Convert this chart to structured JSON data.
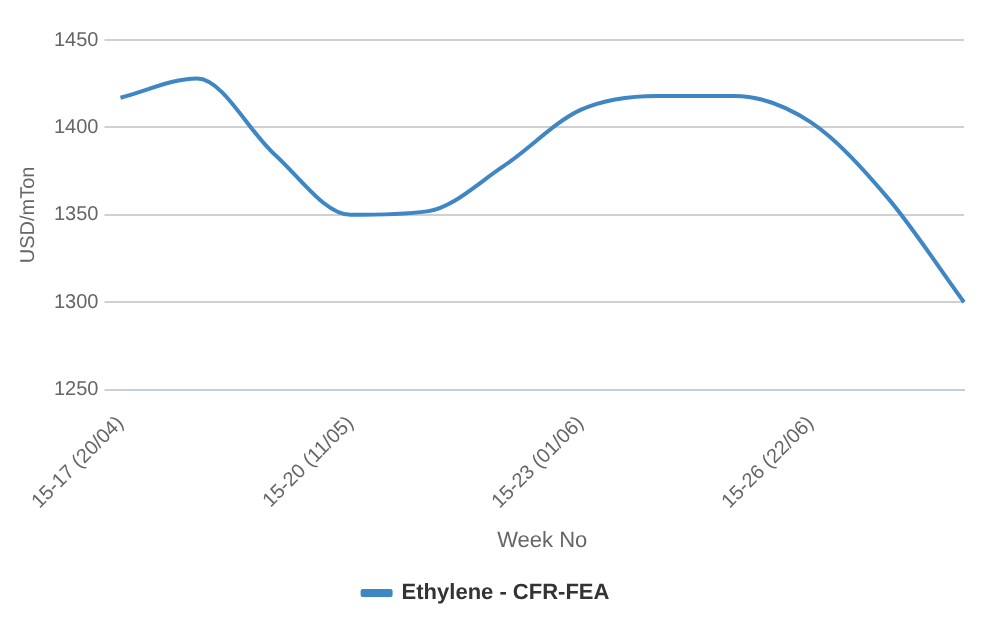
{
  "chart_data": {
    "type": "line",
    "xlabel": "Week No",
    "ylabel": "USD/mTon",
    "categories": [
      "15-17 (20/04)",
      null,
      null,
      "15-20 (11/05)",
      null,
      null,
      "15-23 (01/06)",
      null,
      null,
      "15-26 (22/06)",
      null,
      null
    ],
    "series": [
      {
        "name": "Ethylene - CFR-FEA",
        "color": "#3f86c4",
        "values": [
          1417,
          1428,
          1385,
          1350,
          1352,
          1378,
          1410,
          1418,
          1418,
          1403,
          1360,
          1300
        ]
      }
    ],
    "ylim": [
      1250,
      1450
    ],
    "yticks": [
      1250,
      1300,
      1350,
      1400,
      1450
    ],
    "grid": "y",
    "legend": "bottom",
    "marker": "none"
  }
}
